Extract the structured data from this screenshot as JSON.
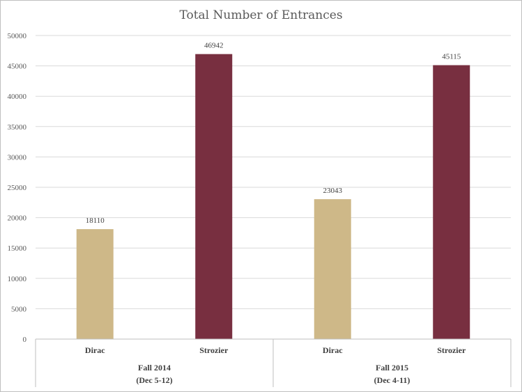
{
  "chart_data": {
    "type": "bar",
    "title": "Total Number of Entrances",
    "xlabel": "",
    "ylabel": "",
    "ylim": [
      0,
      50000
    ],
    "yticks": [
      0,
      5000,
      10000,
      15000,
      20000,
      25000,
      30000,
      35000,
      40000,
      45000,
      50000
    ],
    "grid": true,
    "legend": "none",
    "groups": [
      {
        "label_line1": "Fall 2014",
        "label_line2": "(Dec 5-12)"
      },
      {
        "label_line1": "Fall 2015",
        "label_line2": "(Dec 4-11)"
      }
    ],
    "categories": [
      "Dirac",
      "Strozier",
      "Dirac",
      "Strozier"
    ],
    "values": [
      18110,
      46942,
      23043,
      45115
    ],
    "data_labels": [
      "18110",
      "46942",
      "23043",
      "45115"
    ],
    "colors": {
      "Dirac": "#CEB888",
      "Strozier": "#782F40"
    }
  }
}
